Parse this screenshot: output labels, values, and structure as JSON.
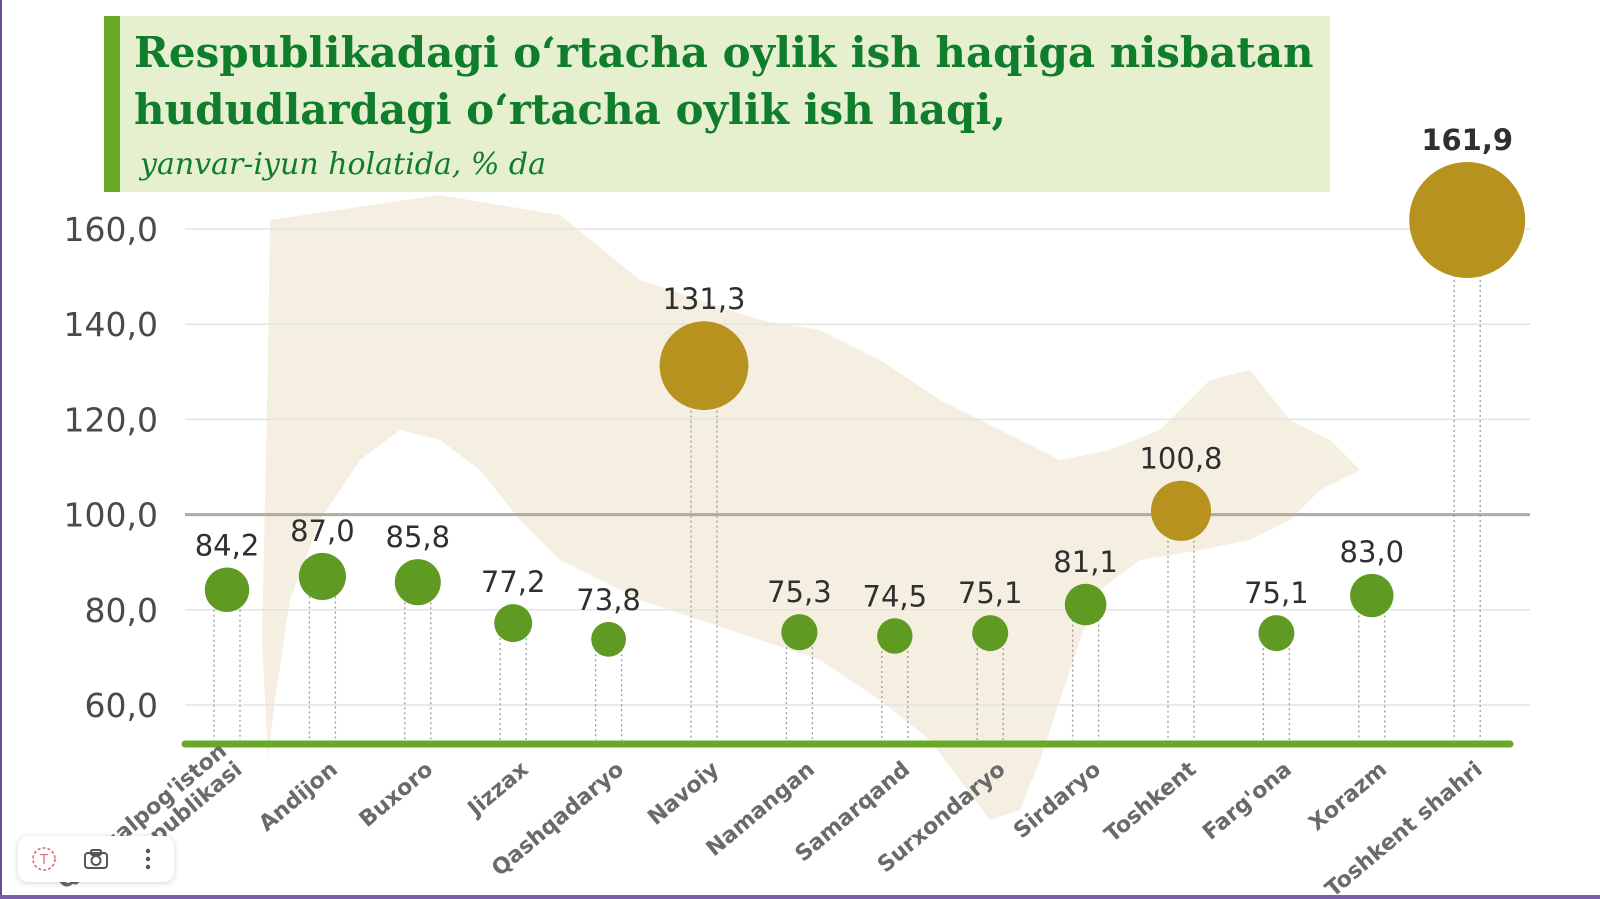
{
  "header": {
    "title_line1": "Respublikadagi o‘rtacha oylik ish haqiga nisbatan",
    "title_line2": "hududlardagi o‘rtacha oylik ish haqi,",
    "subtitle": "yanvar-iyun holatida, % da"
  },
  "colors": {
    "title": "#0f7d2c",
    "header_bg": "#e6f0cf",
    "header_bar": "#6aa828",
    "below": "#5f9a23",
    "above": "#b8921e",
    "baseline": "#6aa828",
    "ref_line": "#b0aaa0",
    "map": "#f3ecdd"
  },
  "chart_data": {
    "type": "scatter",
    "title": "Respublikadagi o‘rtacha oylik ish haqiga nisbatan hududlardagi o‘rtacha oylik ish haqi,",
    "subtitle": "yanvar-iyun holatida, % da",
    "categories": [
      "Qoraqalpog'iston Respublikasi",
      "Andijon",
      "Buxoro",
      "Jizzax",
      "Qashqadaryo",
      "Navoiy",
      "Namangan",
      "Samarqand",
      "Surxondaryo",
      "Sirdaryo",
      "Toshkent",
      "Farg'ona",
      "Xorazm",
      "Toshkent shahri"
    ],
    "values": [
      84.2,
      87.0,
      85.8,
      77.2,
      73.8,
      131.3,
      75.3,
      74.5,
      75.1,
      81.1,
      100.8,
      75.1,
      83.0,
      161.9
    ],
    "value_labels": [
      "84,2",
      "87,0",
      "85,8",
      "77,2",
      "73,8",
      "131,3",
      "75,3",
      "74,5",
      "75,1",
      "81,1",
      "100,8",
      "75,1",
      "83,0",
      "161,9"
    ],
    "y_ticks": [
      "60,0",
      "80,0",
      "100,0",
      "120,0",
      "140,0",
      "160,0"
    ],
    "ylim": [
      55,
      165
    ],
    "reference_line": 100,
    "grid": true
  },
  "toolbar": {
    "text_icon": "text-icon",
    "camera_icon": "camera-icon",
    "more_icon": "more-icon"
  }
}
